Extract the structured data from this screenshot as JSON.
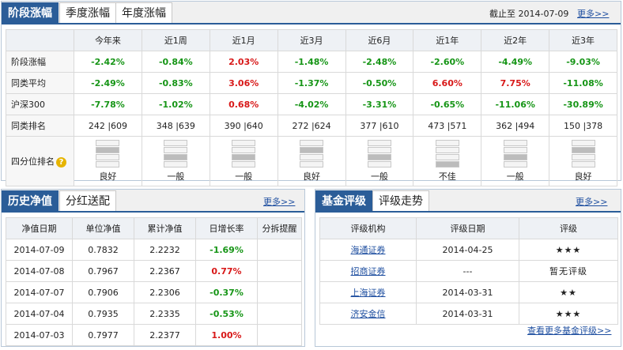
{
  "top": {
    "tabs": [
      "阶段涨幅",
      "季度涨幅",
      "年度涨幅"
    ],
    "date_label": "截止至 2014-07-09",
    "more": "更多>>",
    "columns": [
      "今年来",
      "近1周",
      "近1月",
      "近3月",
      "近6月",
      "近1年",
      "近2年",
      "近3年"
    ],
    "rows": [
      {
        "label": "阶段涨幅",
        "values": [
          "-2.42%",
          "-0.84%",
          "2.03%",
          "-1.48%",
          "-2.48%",
          "-2.60%",
          "-4.49%",
          "-9.03%"
        ]
      },
      {
        "label": "同类平均",
        "values": [
          "-2.49%",
          "-0.83%",
          "3.06%",
          "-1.37%",
          "-0.50%",
          "6.60%",
          "7.75%",
          "-11.08%"
        ]
      },
      {
        "label": "沪深300",
        "values": [
          "-7.78%",
          "-1.02%",
          "0.68%",
          "-4.02%",
          "-3.31%",
          "-0.65%",
          "-11.06%",
          "-30.89%"
        ]
      }
    ],
    "rank_row": {
      "label": "同类排名",
      "values": [
        "242 |609",
        "348 |639",
        "390 |640",
        "272 |624",
        "377 |610",
        "473 |571",
        "362 |494",
        "150 |378"
      ]
    },
    "quartile_row": {
      "label": "四分位排名",
      "help_icon": "?",
      "labels": [
        "良好",
        "一般",
        "一般",
        "良好",
        "一般",
        "不佳",
        "一般",
        "良好"
      ],
      "levels": [
        3,
        2,
        2,
        3,
        2,
        1,
        2,
        3
      ]
    }
  },
  "history": {
    "tabs": [
      "历史净值",
      "分红送配"
    ],
    "more": "更多>>",
    "headers": [
      "净值日期",
      "单位净值",
      "累计净值",
      "日增长率",
      "分拆提醒"
    ],
    "rows": [
      [
        "2014-07-09",
        "0.7832",
        "2.2232",
        "-1.69%",
        ""
      ],
      [
        "2014-07-08",
        "0.7967",
        "2.2367",
        "0.77%",
        ""
      ],
      [
        "2014-07-07",
        "0.7906",
        "2.2306",
        "-0.37%",
        ""
      ],
      [
        "2014-07-04",
        "0.7935",
        "2.2335",
        "-0.53%",
        ""
      ],
      [
        "2014-07-03",
        "0.7977",
        "2.2377",
        "1.00%",
        ""
      ]
    ]
  },
  "rating": {
    "tabs": [
      "基金评级",
      "评级走势"
    ],
    "more": "更多>>",
    "headers": [
      "评级机构",
      "评级日期",
      "评级"
    ],
    "rows": [
      [
        "海通证券",
        "2014-04-25",
        "★★★"
      ],
      [
        "招商证券",
        "---",
        "暂无评级"
      ],
      [
        "上海证券",
        "2014-03-31",
        "★★"
      ],
      [
        "济安金信",
        "2014-03-31",
        "★★★"
      ]
    ],
    "footer_link": "查看更多基金评级>>"
  },
  "colors": {
    "accent": "#2b5d98",
    "positive": "#d81818",
    "negative": "#169516"
  }
}
